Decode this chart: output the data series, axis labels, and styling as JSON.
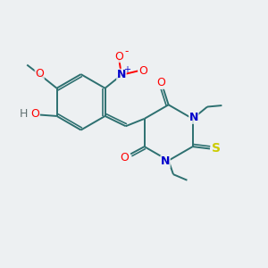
{
  "bg_color": "#edf0f2",
  "bond_color": "#2d7070",
  "atom_colors": {
    "O": "#ff0000",
    "N": "#0000cc",
    "S": "#cccc00",
    "H": "#607070",
    "C": "#2d7070"
  },
  "figsize": [
    3.0,
    3.0
  ],
  "dpi": 100,
  "lw": 1.4,
  "lw_thin": 1.2,
  "font_size": 8.5
}
